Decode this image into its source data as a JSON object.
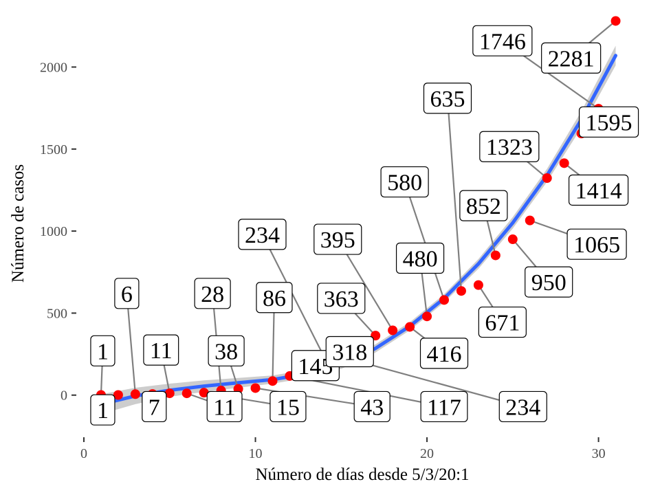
{
  "chart_data": {
    "type": "scatter",
    "xlabel": "Número de días desde 5/3/20:1",
    "ylabel": "Número de casos",
    "xlim": [
      0,
      31.5
    ],
    "ylim": [
      -240,
      2350
    ],
    "x_ticks": [
      0,
      10,
      20,
      30
    ],
    "y_ticks": [
      0,
      500,
      1000,
      1500,
      2000
    ],
    "x_tick_labels": [
      "0",
      "10",
      "20",
      "30"
    ],
    "y_tick_labels": [
      "0",
      "500",
      "1000",
      "1500",
      "2000"
    ],
    "grid": false,
    "point_color": "#ff0000",
    "fit_color": "#3366ff",
    "ribbon_color": "#c8c8c8",
    "points": [
      {
        "x": 1,
        "y": 1
      },
      {
        "x": 2,
        "y": 1
      },
      {
        "x": 3,
        "y": 6
      },
      {
        "x": 4,
        "y": 7
      },
      {
        "x": 5,
        "y": 11
      },
      {
        "x": 6,
        "y": 11
      },
      {
        "x": 7,
        "y": 15
      },
      {
        "x": 8,
        "y": 28
      },
      {
        "x": 9,
        "y": 38
      },
      {
        "x": 10,
        "y": 43
      },
      {
        "x": 11,
        "y": 86
      },
      {
        "x": 12,
        "y": 117
      },
      {
        "x": 13,
        "y": 145
      },
      {
        "x": 14,
        "y": 234
      },
      {
        "x": 15,
        "y": 234
      },
      {
        "x": 16,
        "y": 318
      },
      {
        "x": 17,
        "y": 363
      },
      {
        "x": 18,
        "y": 395
      },
      {
        "x": 19,
        "y": 416
      },
      {
        "x": 20,
        "y": 480
      },
      {
        "x": 21,
        "y": 580
      },
      {
        "x": 22,
        "y": 635
      },
      {
        "x": 23,
        "y": 671
      },
      {
        "x": 24,
        "y": 852
      },
      {
        "x": 25,
        "y": 950
      },
      {
        "x": 26,
        "y": 1065
      },
      {
        "x": 27,
        "y": 1323
      },
      {
        "x": 28,
        "y": 1414
      },
      {
        "x": 29,
        "y": 1595
      },
      {
        "x": 30,
        "y": 1746
      },
      {
        "x": 31,
        "y": 2281
      }
    ],
    "fit": {
      "x": [
        1,
        3,
        5,
        7,
        9,
        11,
        13,
        15,
        17,
        19,
        21,
        23,
        25,
        27,
        29,
        31
      ],
      "y": [
        -55,
        -5,
        30,
        55,
        75,
        95,
        130,
        185,
        285,
        420,
        590,
        800,
        1050,
        1340,
        1680,
        2070
      ],
      "band": [
        60,
        50,
        40,
        35,
        30,
        25,
        25,
        25,
        25,
        25,
        25,
        30,
        35,
        40,
        50,
        60
      ]
    },
    "labels": [
      {
        "text": "1",
        "x": 1,
        "y": 1,
        "lx": 1.1,
        "ly": 270
      },
      {
        "text": "1",
        "x": 1,
        "y": 1,
        "lx": 1.1,
        "ly": -90
      },
      {
        "text": "6",
        "x": 3,
        "y": 6,
        "lx": 2.5,
        "ly": 620
      },
      {
        "text": "7",
        "x": 4,
        "y": 7,
        "lx": 4.1,
        "ly": -70
      },
      {
        "text": "11",
        "x": 5,
        "y": 11,
        "lx": 4.5,
        "ly": 275
      },
      {
        "text": "11",
        "x": 6,
        "y": 11,
        "lx": 8.2,
        "ly": -70
      },
      {
        "text": "15",
        "x": 7,
        "y": 15,
        "lx": 11.9,
        "ly": -70
      },
      {
        "text": "28",
        "x": 8,
        "y": 28,
        "lx": 7.5,
        "ly": 620
      },
      {
        "text": "38",
        "x": 9,
        "y": 38,
        "lx": 8.3,
        "ly": 270
      },
      {
        "text": "43",
        "x": 10,
        "y": 43,
        "lx": 16.8,
        "ly": -70
      },
      {
        "text": "86",
        "x": 11,
        "y": 86,
        "lx": 11.1,
        "ly": 595
      },
      {
        "text": "117",
        "x": 12,
        "y": 117,
        "lx": 21.0,
        "ly": -70
      },
      {
        "text": "145",
        "x": 13,
        "y": 145,
        "lx": 13.5,
        "ly": 180
      },
      {
        "text": "234",
        "x": 14,
        "y": 234,
        "lx": 10.4,
        "ly": 980
      },
      {
        "text": "234",
        "x": 15,
        "y": 234,
        "lx": 25.6,
        "ly": -70
      },
      {
        "text": "318",
        "x": 16,
        "y": 318,
        "lx": 15.5,
        "ly": 265
      },
      {
        "text": "363",
        "x": 17,
        "y": 363,
        "lx": 15.0,
        "ly": 590
      },
      {
        "text": "395",
        "x": 18,
        "y": 395,
        "lx": 14.8,
        "ly": 950
      },
      {
        "text": "416",
        "x": 19,
        "y": 416,
        "lx": 21.0,
        "ly": 255
      },
      {
        "text": "480",
        "x": 20,
        "y": 480,
        "lx": 19.6,
        "ly": 835
      },
      {
        "text": "580",
        "x": 21,
        "y": 580,
        "lx": 18.7,
        "ly": 1300
      },
      {
        "text": "635",
        "x": 22,
        "y": 635,
        "lx": 21.2,
        "ly": 1810
      },
      {
        "text": "671",
        "x": 23,
        "y": 671,
        "lx": 24.4,
        "ly": 445
      },
      {
        "text": "852",
        "x": 24,
        "y": 852,
        "lx": 23.3,
        "ly": 1155
      },
      {
        "text": "950",
        "x": 25,
        "y": 950,
        "lx": 27.1,
        "ly": 690
      },
      {
        "text": "1065",
        "x": 26,
        "y": 1065,
        "lx": 29.9,
        "ly": 920
      },
      {
        "text": "1323",
        "x": 27,
        "y": 1323,
        "lx": 24.8,
        "ly": 1515
      },
      {
        "text": "1414",
        "x": 28,
        "y": 1414,
        "lx": 30.0,
        "ly": 1250
      },
      {
        "text": "1595",
        "x": 29,
        "y": 1595,
        "lx": 30.6,
        "ly": 1665
      },
      {
        "text": "1746",
        "x": 30,
        "y": 1746,
        "lx": 24.4,
        "ly": 2160
      },
      {
        "text": "2281",
        "x": 31,
        "y": 2281,
        "lx": 28.4,
        "ly": 2055
      }
    ]
  }
}
